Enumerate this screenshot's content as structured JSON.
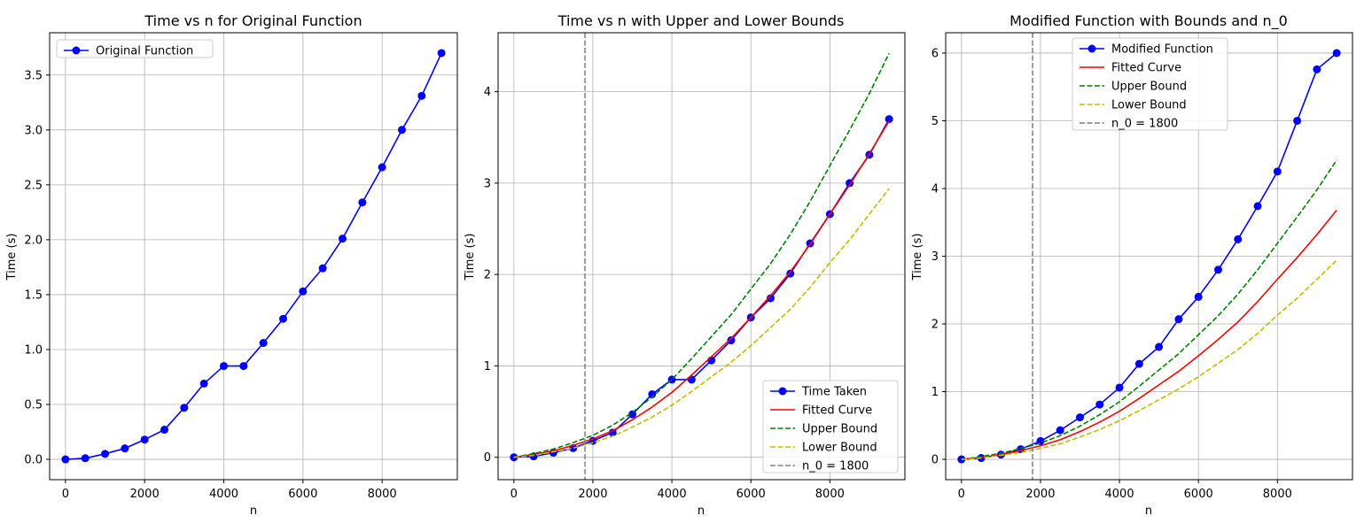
{
  "chart_data": [
    {
      "type": "line",
      "title": "Time vs n for Original Function",
      "xlabel": "n",
      "ylabel": "Time (s)",
      "xlim": [
        -400,
        9900
      ],
      "ylim": [
        -0.185,
        3.885
      ],
      "xticks": [
        0,
        2000,
        4000,
        6000,
        8000
      ],
      "yticks": [
        0.0,
        0.5,
        1.0,
        1.5,
        2.0,
        2.5,
        3.0,
        3.5
      ],
      "ytick_labels": [
        "0.0",
        "0.5",
        "1.0",
        "1.5",
        "2.0",
        "2.5",
        "3.0",
        "3.5"
      ],
      "grid": true,
      "legend_position": "top-left",
      "series": [
        {
          "name": "Original Function",
          "kind": "line-marker",
          "color": "#0000ff",
          "x": [
            0,
            500,
            1000,
            1500,
            2000,
            2500,
            3000,
            3500,
            4000,
            4500,
            5000,
            5500,
            6000,
            6500,
            7000,
            7500,
            8000,
            8500,
            9000,
            9500
          ],
          "y": [
            0.0,
            0.01,
            0.05,
            0.1,
            0.18,
            0.27,
            0.47,
            0.69,
            0.85,
            0.85,
            1.06,
            1.28,
            1.53,
            1.74,
            2.01,
            2.34,
            2.66,
            3.0,
            3.31,
            3.7
          ]
        }
      ]
    },
    {
      "type": "line",
      "title": "Time vs n with Upper and Lower Bounds",
      "xlabel": "n",
      "ylabel": "Time (s)",
      "xlim": [
        -400,
        9900
      ],
      "ylim": [
        -0.245,
        4.645
      ],
      "xticks": [
        0,
        2000,
        4000,
        6000,
        8000
      ],
      "yticks": [
        0,
        1,
        2,
        3,
        4
      ],
      "ytick_labels": [
        "0",
        "1",
        "2",
        "3",
        "4"
      ],
      "grid": true,
      "legend_position": "bottom-right",
      "series": [
        {
          "name": "Time Taken",
          "kind": "line-marker",
          "color": "#0000ff",
          "x": [
            0,
            500,
            1000,
            1500,
            2000,
            2500,
            3000,
            3500,
            4000,
            4500,
            5000,
            5500,
            6000,
            6500,
            7000,
            7500,
            8000,
            8500,
            9000,
            9500
          ],
          "y": [
            0.0,
            0.01,
            0.05,
            0.1,
            0.18,
            0.27,
            0.47,
            0.69,
            0.85,
            0.85,
            1.06,
            1.28,
            1.53,
            1.74,
            2.01,
            2.34,
            2.66,
            3.0,
            3.31,
            3.7
          ]
        },
        {
          "name": "Fitted Curve",
          "kind": "line",
          "color": "#ff0000",
          "x": [
            0,
            500,
            1000,
            1500,
            2000,
            2500,
            3000,
            3500,
            4000,
            4500,
            5000,
            5500,
            6000,
            6500,
            7000,
            7500,
            8000,
            8500,
            9000,
            9500
          ],
          "y": [
            0.0,
            0.03,
            0.07,
            0.13,
            0.2,
            0.29,
            0.41,
            0.55,
            0.71,
            0.9,
            1.1,
            1.3,
            1.53,
            1.77,
            2.03,
            2.33,
            2.66,
            2.98,
            3.32,
            3.68
          ]
        },
        {
          "name": "Upper Bound",
          "kind": "dashed",
          "color": "#008000",
          "x": [
            0,
            500,
            1000,
            1500,
            2000,
            2500,
            3000,
            3500,
            4000,
            4500,
            5000,
            5500,
            6000,
            6500,
            7000,
            7500,
            8000,
            8500,
            9000,
            9500
          ],
          "y": [
            0.0,
            0.04,
            0.09,
            0.16,
            0.24,
            0.35,
            0.49,
            0.66,
            0.85,
            1.08,
            1.32,
            1.56,
            1.84,
            2.12,
            2.44,
            2.8,
            3.19,
            3.58,
            3.98,
            4.42
          ]
        },
        {
          "name": "Lower Bound",
          "kind": "dashed",
          "color": "#bfbf00",
          "x": [
            0,
            500,
            1000,
            1500,
            2000,
            2500,
            3000,
            3500,
            4000,
            4500,
            5000,
            5500,
            6000,
            6500,
            7000,
            7500,
            8000,
            8500,
            9000,
            9500
          ],
          "y": [
            0.0,
            0.02,
            0.06,
            0.1,
            0.16,
            0.23,
            0.33,
            0.44,
            0.57,
            0.72,
            0.88,
            1.04,
            1.22,
            1.42,
            1.62,
            1.86,
            2.13,
            2.38,
            2.66,
            2.94
          ]
        },
        {
          "name": "n_0 = 1800",
          "kind": "vline",
          "color": "#808080",
          "x_value": 1800
        }
      ]
    },
    {
      "type": "line",
      "title": "Modified Function with Bounds and n_0",
      "xlabel": "n",
      "ylabel": "Time (s)",
      "xlim": [
        -400,
        9900
      ],
      "ylim": [
        -0.3,
        6.3
      ],
      "xticks": [
        0,
        2000,
        4000,
        6000,
        8000
      ],
      "yticks": [
        0,
        1,
        2,
        3,
        4,
        5,
        6
      ],
      "ytick_labels": [
        "0",
        "1",
        "2",
        "3",
        "4",
        "5",
        "6"
      ],
      "grid": true,
      "legend_position": "upper-center",
      "series": [
        {
          "name": "Modified Function",
          "kind": "line-marker",
          "color": "#0000ff",
          "x": [
            0,
            500,
            1000,
            1500,
            2000,
            2500,
            3000,
            3500,
            4000,
            4500,
            5000,
            5500,
            6000,
            6500,
            7000,
            7500,
            8000,
            8500,
            9000,
            9500
          ],
          "y": [
            0.0,
            0.02,
            0.07,
            0.15,
            0.27,
            0.43,
            0.62,
            0.81,
            1.06,
            1.41,
            1.66,
            2.07,
            2.4,
            2.8,
            3.25,
            3.74,
            4.25,
            5.0,
            5.76,
            6.0
          ]
        },
        {
          "name": "Fitted Curve",
          "kind": "line",
          "color": "#ff0000",
          "x": [
            0,
            500,
            1000,
            1500,
            2000,
            2500,
            3000,
            3500,
            4000,
            4500,
            5000,
            5500,
            6000,
            6500,
            7000,
            7500,
            8000,
            8500,
            9000,
            9500
          ],
          "y": [
            0.0,
            0.03,
            0.07,
            0.13,
            0.2,
            0.29,
            0.41,
            0.55,
            0.71,
            0.9,
            1.1,
            1.3,
            1.53,
            1.77,
            2.03,
            2.33,
            2.66,
            2.98,
            3.32,
            3.68
          ]
        },
        {
          "name": "Upper Bound",
          "kind": "dashed",
          "color": "#008000",
          "x": [
            0,
            500,
            1000,
            1500,
            2000,
            2500,
            3000,
            3500,
            4000,
            4500,
            5000,
            5500,
            6000,
            6500,
            7000,
            7500,
            8000,
            8500,
            9000,
            9500
          ],
          "y": [
            0.0,
            0.04,
            0.09,
            0.16,
            0.24,
            0.35,
            0.49,
            0.66,
            0.85,
            1.08,
            1.32,
            1.56,
            1.84,
            2.12,
            2.44,
            2.8,
            3.19,
            3.58,
            3.98,
            4.42
          ]
        },
        {
          "name": "Lower Bound",
          "kind": "dashed",
          "color": "#bfbf00",
          "x": [
            0,
            500,
            1000,
            1500,
            2000,
            2500,
            3000,
            3500,
            4000,
            4500,
            5000,
            5500,
            6000,
            6500,
            7000,
            7500,
            8000,
            8500,
            9000,
            9500
          ],
          "y": [
            0.0,
            0.02,
            0.06,
            0.1,
            0.16,
            0.23,
            0.33,
            0.44,
            0.57,
            0.72,
            0.88,
            1.04,
            1.22,
            1.42,
            1.62,
            1.86,
            2.13,
            2.38,
            2.66,
            2.94
          ]
        },
        {
          "name": "n_0 = 1800",
          "kind": "vline",
          "color": "#808080",
          "x_value": 1800
        }
      ]
    }
  ]
}
